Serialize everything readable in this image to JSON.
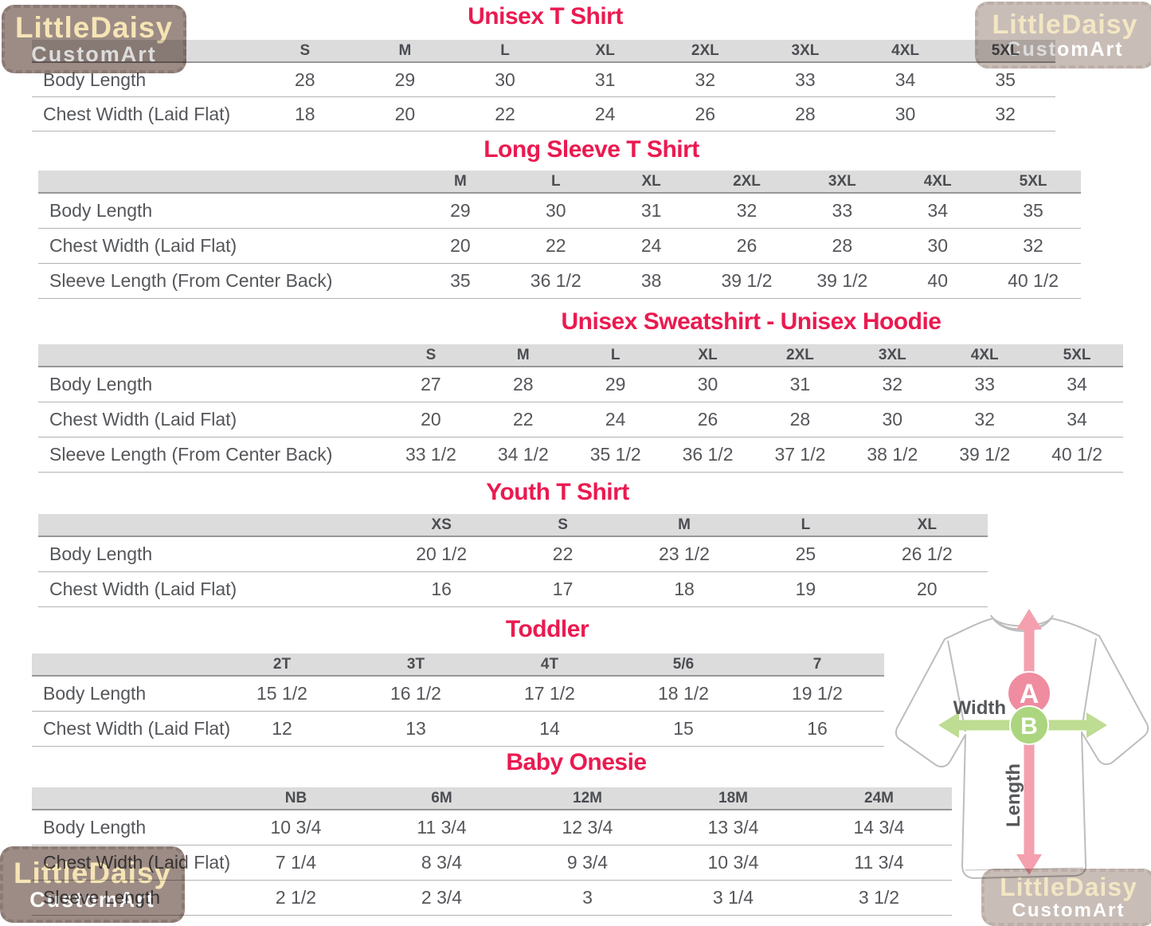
{
  "watermark": {
    "line1": "LittleDaisy",
    "line2": "CustomArt"
  },
  "colors": {
    "title_pink": "#EA1A50",
    "header_gray": "#DCDCDC",
    "text_gray": "#54565A",
    "line_gray": "#B3B3B3",
    "arrow_pink": "#F4A0AE",
    "arrow_green": "#BEDC92",
    "circle_a_pink": "#F08CA0",
    "circle_b_green": "#ABD57E",
    "shirt_outline": "#BDBDBD",
    "watermark_bg_dark": "#9C8C85",
    "watermark_bg_light": "#C9BDB7",
    "watermark_text_cream": "#F6E4B5",
    "watermark_text_light": "#FFFFFF"
  },
  "diagram": {
    "width_label": "Width",
    "length_label": "Length",
    "point_a": "A",
    "point_b": "B"
  },
  "tables": [
    {
      "title": "Unisex T Shirt",
      "sizes": [
        "S",
        "M",
        "L",
        "XL",
        "2XL",
        "3XL",
        "4XL",
        "5XL"
      ],
      "rows": [
        {
          "label": "Body Length",
          "values": [
            "28",
            "29",
            "30",
            "31",
            "32",
            "33",
            "34",
            "35"
          ]
        },
        {
          "label": "Chest Width (Laid Flat)",
          "values": [
            "18",
            "20",
            "22",
            "24",
            "26",
            "28",
            "30",
            "32"
          ]
        }
      ]
    },
    {
      "title": "Long Sleeve T Shirt",
      "sizes": [
        "M",
        "L",
        "XL",
        "2XL",
        "3XL",
        "4XL",
        "5XL"
      ],
      "rows": [
        {
          "label": "Body Length",
          "values": [
            "29",
            "30",
            "31",
            "32",
            "33",
            "34",
            "35"
          ]
        },
        {
          "label": "Chest Width (Laid Flat)",
          "values": [
            "20",
            "22",
            "24",
            "26",
            "28",
            "30",
            "32"
          ]
        },
        {
          "label": "Sleeve Length (From Center Back)",
          "values": [
            "35",
            "36 1/2",
            "38",
            "39 1/2",
            "39 1/2",
            "40",
            "40 1/2"
          ]
        }
      ]
    },
    {
      "title": "Unisex Sweatshirt - Unisex Hoodie",
      "sizes": [
        "S",
        "M",
        "L",
        "XL",
        "2XL",
        "3XL",
        "4XL",
        "5XL"
      ],
      "rows": [
        {
          "label": "Body Length",
          "values": [
            "27",
            "28",
            "29",
            "30",
            "31",
            "32",
            "33",
            "34"
          ]
        },
        {
          "label": "Chest Width (Laid Flat)",
          "values": [
            "20",
            "22",
            "24",
            "26",
            "28",
            "30",
            "32",
            "34"
          ]
        },
        {
          "label": "Sleeve Length (From Center Back)",
          "values": [
            "33 1/2",
            "34 1/2",
            "35 1/2",
            "36 1/2",
            "37 1/2",
            "38 1/2",
            "39 1/2",
            "40 1/2"
          ]
        }
      ]
    },
    {
      "title": "Youth T Shirt",
      "sizes": [
        "XS",
        "S",
        "M",
        "L",
        "XL"
      ],
      "rows": [
        {
          "label": "Body Length",
          "values": [
            "20 1/2",
            "22",
            "23 1/2",
            "25",
            "26 1/2"
          ]
        },
        {
          "label": "Chest Width (Laid Flat)",
          "values": [
            "16",
            "17",
            "18",
            "19",
            "20"
          ]
        }
      ]
    },
    {
      "title": "Toddler",
      "sizes": [
        "2T",
        "3T",
        "4T",
        "5/6",
        "7"
      ],
      "rows": [
        {
          "label": "Body Length",
          "values": [
            "15 1/2",
            "16 1/2",
            "17 1/2",
            "18 1/2",
            "19 1/2"
          ]
        },
        {
          "label": "Chest Width (Laid Flat)",
          "values": [
            "12",
            "13",
            "14",
            "15",
            "16"
          ]
        }
      ]
    },
    {
      "title": "Baby Onesie",
      "sizes": [
        "NB",
        "6M",
        "12M",
        "18M",
        "24M"
      ],
      "rows": [
        {
          "label": "Body Length",
          "values": [
            "10 3/4",
            "11 3/4",
            "12 3/4",
            "13 3/4",
            "14 3/4"
          ]
        },
        {
          "label": "Chest Width (Laid Flat)",
          "values": [
            "7 1/4",
            "8 3/4",
            "9 3/4",
            "10 3/4",
            "11 3/4"
          ]
        },
        {
          "label": "Sleeve Length",
          "values": [
            "2 1/2",
            "2 3/4",
            "3",
            "3 1/4",
            "3 1/2"
          ]
        }
      ]
    }
  ]
}
